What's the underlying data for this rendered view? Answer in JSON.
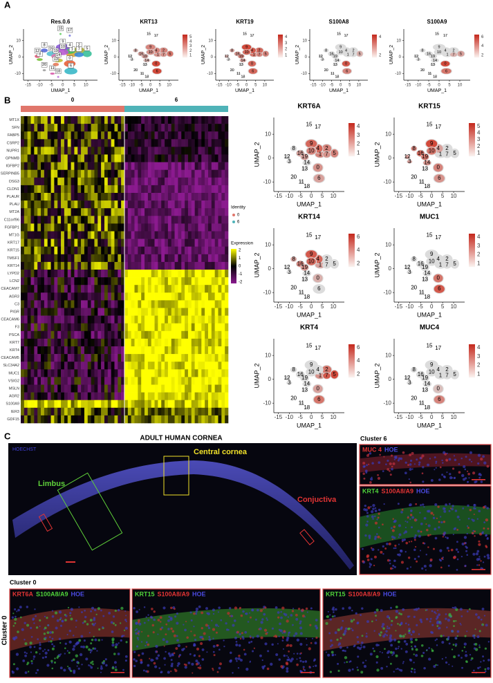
{
  "umap": {
    "x_label": "UMAP_1",
    "y_label": "UMAP_2",
    "x_ticks": [
      -15,
      -10,
      -5,
      0,
      5,
      10
    ],
    "y_ticks": [
      10,
      0,
      -10
    ],
    "clusters": [
      "0",
      "1",
      "2",
      "3",
      "4",
      "5",
      "6",
      "7",
      "8",
      "9",
      "10",
      "11",
      "12",
      "13",
      "14",
      "15",
      "16",
      "17",
      "18",
      "19",
      "20"
    ]
  },
  "panel_a": {
    "label": "A",
    "cluster_plot": {
      "title": "Res.0.6"
    },
    "feature_plots": [
      {
        "title": "KRT13",
        "legend_ticks": [
          5,
          4,
          3,
          2,
          1
        ]
      },
      {
        "title": "KRT19",
        "legend_ticks": [
          4,
          3,
          2,
          1
        ]
      },
      {
        "title": "S100A8",
        "legend_ticks": [
          4,
          2
        ]
      },
      {
        "title": "S100A9",
        "legend_ticks": [
          6,
          4,
          2
        ]
      }
    ]
  },
  "panel_b": {
    "label": "B",
    "identity_groups": [
      "0",
      "6"
    ],
    "genes": [
      "MT1X",
      "SFN",
      "FABP5",
      "CSRP2",
      "NUPR1",
      "GPNMB",
      "IGFBP2",
      "SERPINB5",
      "DSG3",
      "CLDN1",
      "PLAUR",
      "PLAU",
      "MT2A",
      "C11orf96",
      "FGFBP1",
      "MT1G",
      "KRT17",
      "KRT15",
      "TMSF1",
      "KRT14",
      "LYPD2",
      "LCN2",
      "CEACAM7",
      "AGR3",
      "C3",
      "PIGR",
      "CEACAM6",
      "F3",
      "PSCA",
      "KRT7",
      "KRT4",
      "CEACAM5",
      "SLC34A2",
      "MUC1",
      "VSIG2",
      "MSLN",
      "AGR2",
      "S100A9",
      "IER3",
      "GDF15"
    ],
    "legend": {
      "identity_title": "Identity",
      "expression_title": "Expression",
      "expression_ticks": [
        2,
        1,
        0,
        -1,
        -2
      ]
    },
    "feature_plots": [
      {
        "title": "KRT6A",
        "legend_ticks": [
          4,
          3,
          2,
          1
        ]
      },
      {
        "title": "KRT15",
        "legend_ticks": [
          5,
          4,
          3,
          2,
          1
        ]
      },
      {
        "title": "KRT14",
        "legend_ticks": [
          6,
          4,
          2
        ]
      },
      {
        "title": "MUC1",
        "legend_ticks": [
          4,
          3,
          2,
          1
        ]
      },
      {
        "title": "KRT4",
        "legend_ticks": [
          6,
          4,
          2
        ]
      },
      {
        "title": "MUC4",
        "legend_ticks": [
          4,
          3,
          2,
          1
        ]
      }
    ]
  },
  "panel_c": {
    "label": "C",
    "title": "ADULT HUMAN CORNEA",
    "stain": {
      "text": "HOECHST",
      "color": "#4040d8"
    },
    "regions": [
      {
        "text": "Central cornea",
        "color": "#f2e22a"
      },
      {
        "text": "Limbus",
        "color": "#5fd03a"
      },
      {
        "text": "Conjuctiva",
        "color": "#e23434"
      }
    ],
    "cluster6": {
      "title": "Cluster 6",
      "images": [
        [
          {
            "text": "MUC 4",
            "color": "#e23434"
          },
          {
            "text": "HOE",
            "color": "#4a4ae0"
          }
        ],
        [
          {
            "text": "KRT4",
            "color": "#4fd23a"
          },
          {
            "text": "S100A8/A9",
            "color": "#e23434"
          },
          {
            "text": "HOE",
            "color": "#4a4ae0"
          }
        ]
      ]
    },
    "cluster0": {
      "title": "Cluster 0",
      "side_label": "Cluster 0",
      "images": [
        [
          {
            "text": "KRT6A",
            "color": "#e23434"
          },
          {
            "text": "S100A8/A9",
            "color": "#4fd23a"
          },
          {
            "text": "HOE",
            "color": "#4a4ae0"
          }
        ],
        [
          {
            "text": "KRT15",
            "color": "#4fd23a"
          },
          {
            "text": "S100A8/A9",
            "color": "#e23434"
          },
          {
            "text": "HOE",
            "color": "#4a4ae0"
          }
        ],
        [
          {
            "text": "KRT15",
            "color": "#4fd23a"
          },
          {
            "text": "S100A8/A9",
            "color": "#e23434"
          },
          {
            "text": "HOE",
            "color": "#4a4ae0"
          }
        ]
      ]
    }
  }
}
